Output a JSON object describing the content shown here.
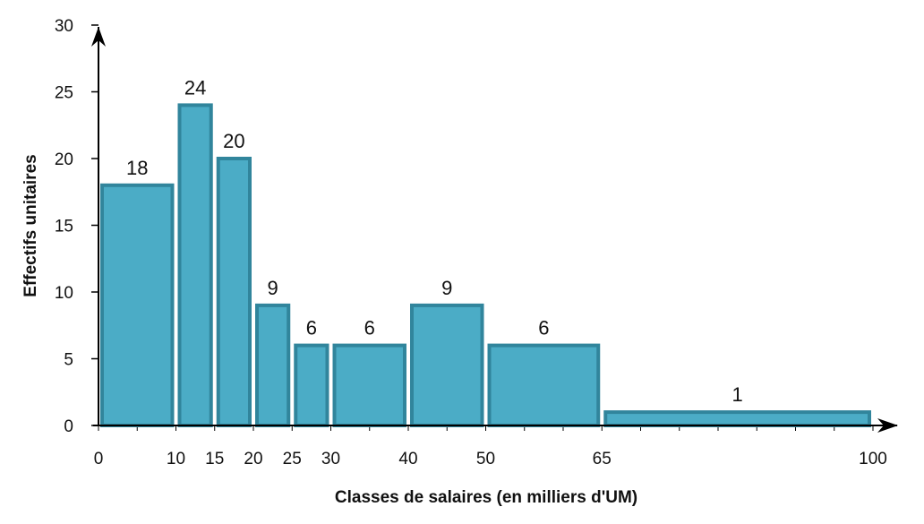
{
  "chart_data": {
    "type": "bar",
    "subtype": "histogram",
    "xlabel": "Classes de salaires (en milliers d'UM)",
    "ylabel": "Effectifs unitaires",
    "xlim": [
      0,
      100
    ],
    "ylim": [
      0,
      30
    ],
    "x_ticks": [
      0,
      10,
      15,
      20,
      25,
      30,
      40,
      50,
      65,
      100
    ],
    "y_ticks": [
      0,
      5,
      10,
      15,
      20,
      25,
      30
    ],
    "bins": [
      {
        "from": 0,
        "to": 10,
        "value": 18,
        "label": "18"
      },
      {
        "from": 10,
        "to": 15,
        "value": 24,
        "label": "24"
      },
      {
        "from": 15,
        "to": 20,
        "value": 20,
        "label": "20"
      },
      {
        "from": 20,
        "to": 25,
        "value": 9,
        "label": "9"
      },
      {
        "from": 25,
        "to": 30,
        "value": 6,
        "label": "6"
      },
      {
        "from": 30,
        "to": 40,
        "value": 6,
        "label": "6"
      },
      {
        "from": 40,
        "to": 50,
        "value": 9,
        "label": "9"
      },
      {
        "from": 50,
        "to": 65,
        "value": 6,
        "label": "6"
      },
      {
        "from": 65,
        "to": 100,
        "value": 1,
        "label": "1"
      }
    ],
    "grid": false,
    "legend": "none",
    "colors": {
      "bar_fill": "#4BACC6",
      "bar_stroke": "#31859C",
      "axis": "#000000"
    }
  }
}
